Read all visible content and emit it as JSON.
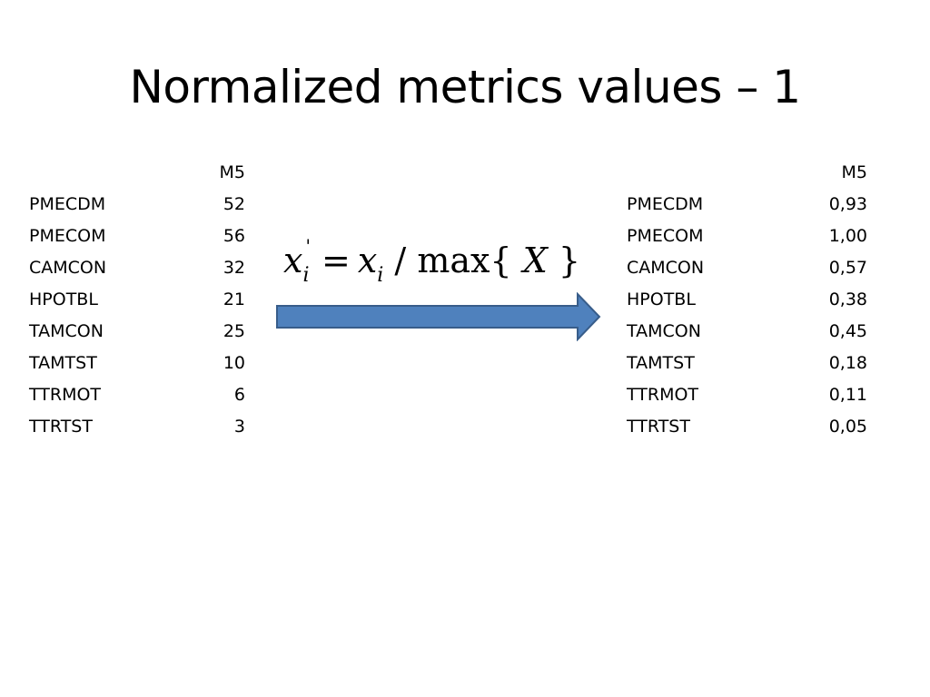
{
  "slide": {
    "title": "Normalized metrics values – 1"
  },
  "left_table": {
    "header": {
      "name": "",
      "value": "M5"
    },
    "rows": [
      {
        "name": "PMECDM",
        "value": "52"
      },
      {
        "name": "PMECOM",
        "value": "56"
      },
      {
        "name": "CAMCON",
        "value": "32"
      },
      {
        "name": "HPOTBL",
        "value": "21"
      },
      {
        "name": "TAMCON",
        "value": "25"
      },
      {
        "name": "TAMTST",
        "value": "10"
      },
      {
        "name": "TTRMOT",
        "value": "6"
      },
      {
        "name": "TTRTST",
        "value": "3"
      }
    ]
  },
  "right_table": {
    "header": {
      "name": "",
      "value": "M5"
    },
    "rows": [
      {
        "name": "PMECDM",
        "value": "0,93"
      },
      {
        "name": "PMECOM",
        "value": "1,00"
      },
      {
        "name": "CAMCON",
        "value": "0,57"
      },
      {
        "name": "HPOTBL",
        "value": "0,38"
      },
      {
        "name": "TAMCON",
        "value": "0,45"
      },
      {
        "name": "TAMTST",
        "value": "0,18"
      },
      {
        "name": "TTRMOT",
        "value": "0,11"
      },
      {
        "name": "TTRTST",
        "value": "0,05"
      }
    ]
  },
  "formula": {
    "lhs_var": "x",
    "lhs_sub": "i",
    "prime": "'",
    "equals": "=",
    "rhs_var": "x",
    "rhs_sub": "i",
    "divide": "/",
    "func": "max{",
    "arg": "X",
    "close": "}"
  },
  "arrow": {
    "fill_color": "#4F81BD",
    "stroke_color": "#385D8A"
  }
}
